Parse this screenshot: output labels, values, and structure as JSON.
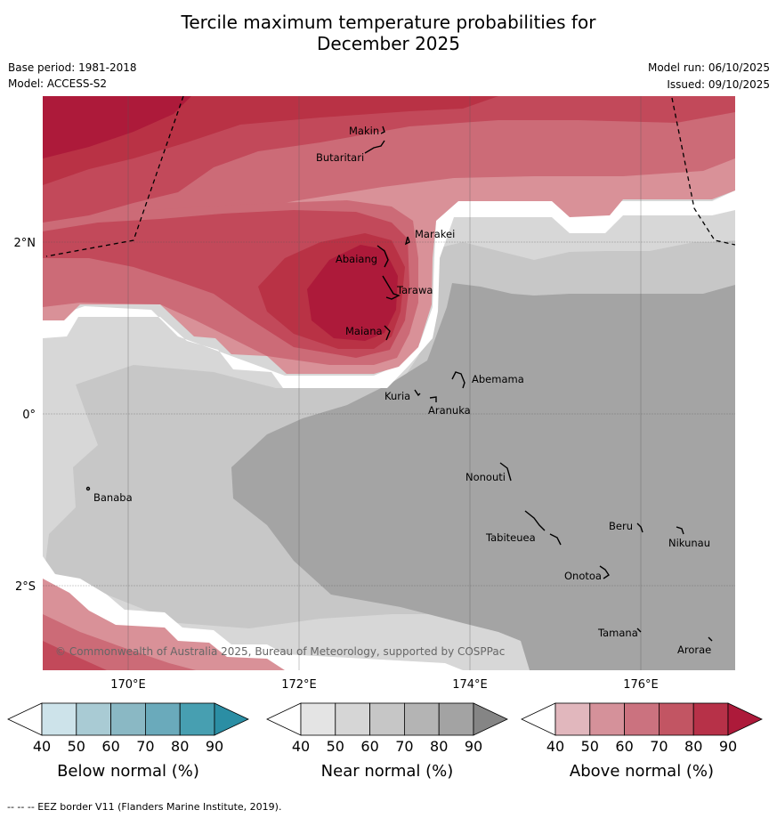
{
  "title": {
    "line1": "Tercile maximum temperature probabilities for",
    "line2": "December 2025"
  },
  "meta": {
    "base_period": "Base period: 1981-2018",
    "model": "Model: ACCESS-S2",
    "model_run": "Model run: 06/10/2025",
    "issued": "Issued: 09/10/2025"
  },
  "axes": {
    "lon_labels": [
      "170°E",
      "172°E",
      "174°E",
      "176°E"
    ],
    "lat_labels": [
      "2°N",
      "0°",
      "2°S"
    ]
  },
  "places": [
    {
      "name": "Makin"
    },
    {
      "name": "Butaritari"
    },
    {
      "name": "Marakei"
    },
    {
      "name": "Abaiang"
    },
    {
      "name": "Tarawa"
    },
    {
      "name": "Maiana"
    },
    {
      "name": "Abemama"
    },
    {
      "name": "Kuria"
    },
    {
      "name": "Aranuka"
    },
    {
      "name": "Nonouti"
    },
    {
      "name": "Banaba"
    },
    {
      "name": "Beru"
    },
    {
      "name": "Tabiteuea"
    },
    {
      "name": "Nikunau"
    },
    {
      "name": "Onotoa"
    },
    {
      "name": "Tamana"
    },
    {
      "name": "Arorae"
    }
  ],
  "copyright": "© Commonwealth of Australia 2025, Bureau of Meteorology, supported by COSPPac",
  "colorbars": [
    {
      "label": "Below normal (%)",
      "ticks": [
        "40",
        "50",
        "60",
        "70",
        "80",
        "90"
      ],
      "colors": [
        "#ffffff",
        "#cde3ea",
        "#a9cbd4",
        "#8ab8c4",
        "#6aaabb",
        "#479fb1",
        "#2b8ea4"
      ]
    },
    {
      "label": "Near normal (%)",
      "ticks": [
        "40",
        "50",
        "60",
        "70",
        "80",
        "90"
      ],
      "colors": [
        "#ffffff",
        "#e4e4e4",
        "#d6d6d6",
        "#c6c6c6",
        "#b4b4b4",
        "#a3a3a3",
        "#858585"
      ]
    },
    {
      "label": "Above normal (%)",
      "ticks": [
        "40",
        "50",
        "60",
        "70",
        "80",
        "90"
      ],
      "colors": [
        "#ffffff",
        "#e1b7bd",
        "#d5919a",
        "#cb727f",
        "#c25563",
        "#b73148",
        "#ad1a3a"
      ]
    }
  ],
  "footer": "--  --  -- EEZ border V11 (Flanders Marine Institute, 2019)."
}
